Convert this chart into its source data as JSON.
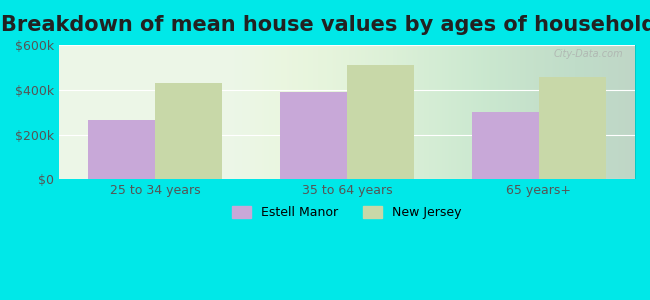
{
  "title": "Breakdown of mean house values by ages of householders",
  "categories": [
    "25 to 34 years",
    "35 to 64 years",
    "65 years+"
  ],
  "estell_manor": [
    265000,
    390000,
    300000
  ],
  "new_jersey": [
    430000,
    510000,
    455000
  ],
  "ylim": [
    0,
    600000
  ],
  "yticks": [
    0,
    200000,
    400000,
    600000
  ],
  "ytick_labels": [
    "$0",
    "$200k",
    "$400k",
    "$600k"
  ],
  "bar_color_estell": "#c8a8d8",
  "bar_color_nj": "#c8d8a8",
  "background_color": "#00e8e8",
  "legend_estell": "Estell Manor",
  "legend_nj": "New Jersey",
  "title_fontsize": 15,
  "tick_fontsize": 9,
  "bar_width": 0.35,
  "watermark": "City-Data.com"
}
